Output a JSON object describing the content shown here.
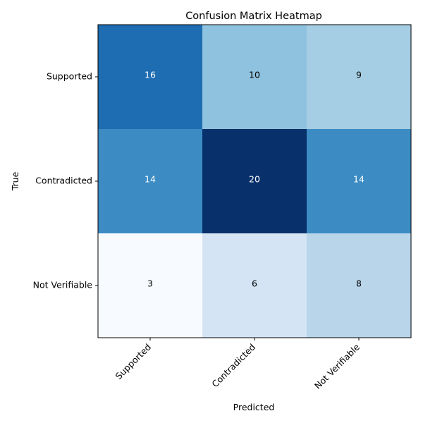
{
  "chart_data": {
    "type": "heatmap",
    "title": "Confusion Matrix Heatmap",
    "xlabel": "Predicted",
    "ylabel": "True",
    "x_categories": [
      "Supported",
      "Contradicted",
      "Not Verifiable"
    ],
    "y_categories": [
      "Supported",
      "Contradicted",
      "Not Verifiable"
    ],
    "values": [
      [
        16,
        10,
        9
      ],
      [
        14,
        20,
        14
      ],
      [
        3,
        6,
        8
      ]
    ],
    "colormap": "Blues",
    "value_range": [
      3,
      20
    ],
    "colors": {
      "light": "#f7fbff",
      "dark": "#08306b",
      "text_on_dark": "#ffffff",
      "text_on_light": "#000000"
    }
  }
}
